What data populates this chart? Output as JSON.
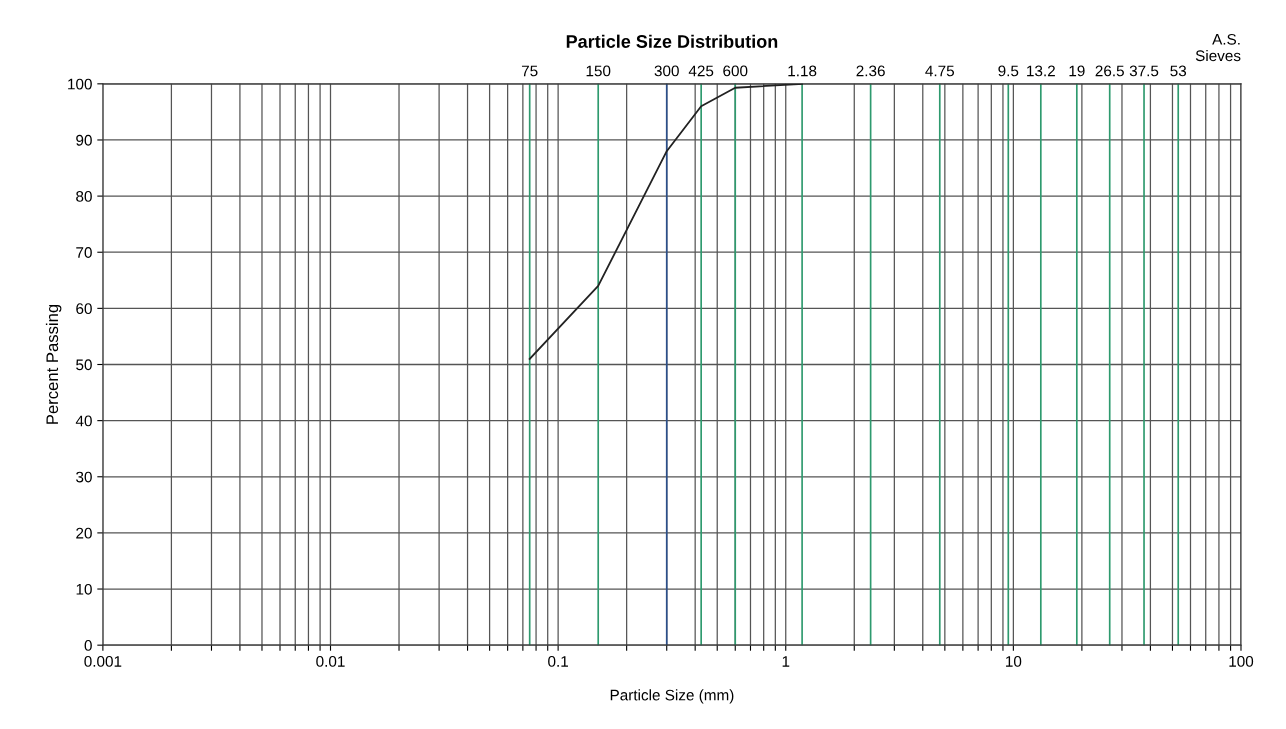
{
  "chart_data": {
    "type": "line",
    "title": "Particle Size Distribution",
    "xlabel": "Particle Size (mm)",
    "ylabel": "Percent Passing",
    "log": "x",
    "grid": true,
    "marker": "none",
    "line_style": "solid",
    "xlim": [
      0.001,
      100
    ],
    "ylim": [
      0,
      100
    ],
    "xticks": [
      0.001,
      {
        "value": 0.002,
        "label": null
      },
      {
        "value": 0.003,
        "label": null
      },
      {
        "value": 0.004,
        "label": null
      },
      {
        "value": 0.005,
        "label": null
      },
      {
        "value": 0.006,
        "label": null
      },
      {
        "value": 0.007,
        "label": null
      },
      {
        "value": 0.008,
        "label": null
      },
      {
        "value": 0.009,
        "label": null
      },
      0.01,
      {
        "value": 0.02,
        "label": null
      },
      {
        "value": 0.03,
        "label": null
      },
      {
        "value": 0.04,
        "label": null
      },
      {
        "value": 0.05,
        "label": null
      },
      {
        "value": 0.06,
        "label": null
      },
      {
        "value": 0.07,
        "label": null
      },
      {
        "value": 0.08,
        "label": null
      },
      {
        "value": 0.09,
        "label": null
      },
      0.1,
      {
        "value": 0.2,
        "label": null
      },
      {
        "value": 0.3,
        "label": null
      },
      {
        "value": 0.4,
        "label": null
      },
      {
        "value": 0.5,
        "label": null
      },
      {
        "value": 0.6,
        "label": null
      },
      {
        "value": 0.7,
        "label": null
      },
      {
        "value": 0.8,
        "label": null
      },
      {
        "value": 0.9,
        "label": null
      },
      1,
      {
        "value": 2,
        "label": null
      },
      {
        "value": 3,
        "label": null
      },
      {
        "value": 4,
        "label": null
      },
      {
        "value": 5,
        "label": null
      },
      {
        "value": 6,
        "label": null
      },
      {
        "value": 7,
        "label": null
      },
      {
        "value": 8,
        "label": null
      },
      {
        "value": 9,
        "label": null
      },
      10,
      {
        "value": 20,
        "label": null
      },
      {
        "value": 30,
        "label": null
      },
      {
        "value": 40,
        "label": null
      },
      {
        "value": 50,
        "label": null
      },
      {
        "value": 60,
        "label": null
      },
      {
        "value": 70,
        "label": null
      },
      {
        "value": 80,
        "label": null
      },
      {
        "value": 90,
        "label": null
      },
      100
    ],
    "yticks": [
      0,
      10,
      20,
      30,
      40,
      50,
      60,
      70,
      80,
      90,
      100
    ],
    "series": [
      {
        "color": "#222222",
        "x": [
          0.075,
          0.15,
          0.3,
          0.425,
          0.6,
          1.18
        ],
        "values": [
          51,
          64,
          88,
          96,
          99.3,
          100
        ]
      }
    ],
    "ref_lines": [
      {
        "axis": "x",
        "value": 0.075,
        "label": "75",
        "color": "#2e9a6e"
      },
      {
        "axis": "x",
        "value": 0.15,
        "label": "150",
        "color": "#2e9a6e"
      },
      {
        "axis": "x",
        "value": 0.3,
        "label": "300",
        "color": "#2b4f8a"
      },
      {
        "axis": "x",
        "value": 0.425,
        "label": "425",
        "color": "#2e9a6e"
      },
      {
        "axis": "x",
        "value": 0.6,
        "label": "600",
        "color": "#2e9a6e"
      },
      {
        "axis": "x",
        "value": 1.18,
        "label": "1.18",
        "color": "#2e9a6e"
      },
      {
        "axis": "x",
        "value": 2.36,
        "label": "2.36",
        "color": "#2e9a6e"
      },
      {
        "axis": "x",
        "value": 4.75,
        "label": "4.75",
        "color": "#2e9a6e"
      },
      {
        "axis": "x",
        "value": 9.5,
        "label": "9.5",
        "color": "#2e9a6e"
      },
      {
        "axis": "x",
        "value": 13.2,
        "label": "13.2",
        "color": "#2e9a6e"
      },
      {
        "axis": "x",
        "value": 19,
        "label": "19",
        "color": "#2e9a6e"
      },
      {
        "axis": "x",
        "value": 26.5,
        "label": "26.5",
        "color": "#2e9a6e"
      },
      {
        "axis": "x",
        "value": 37.5,
        "label": "37.5",
        "color": "#2e9a6e"
      },
      {
        "axis": "x",
        "value": 53,
        "label": "53",
        "color": "#2e9a6e"
      }
    ],
    "annotations": [
      "A.S.\nSieves"
    ]
  }
}
